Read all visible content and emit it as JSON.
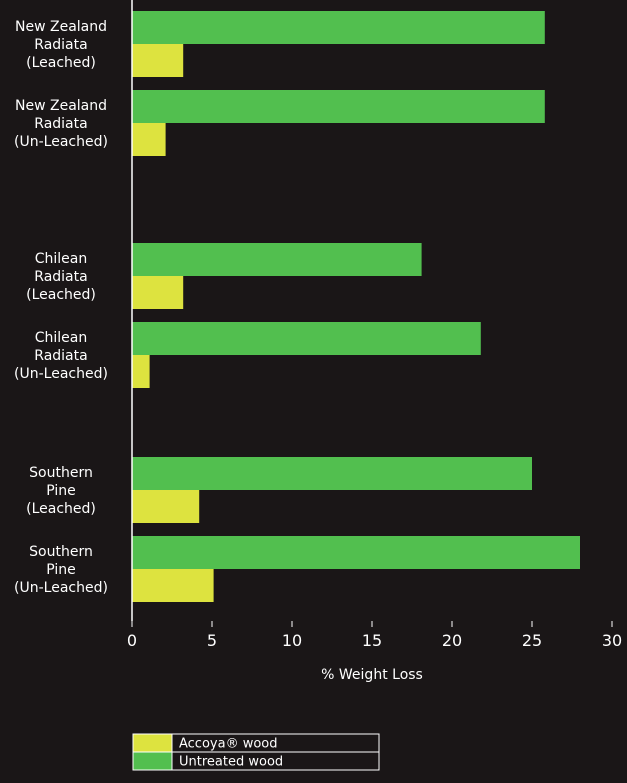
{
  "chart_data": {
    "type": "bar",
    "orientation": "horizontal",
    "categories": [
      [
        "New Zealand",
        "Radiata",
        "(Leached)"
      ],
      [
        "New Zealand",
        "Radiata",
        "(Un-Leached)"
      ],
      [
        "Chilean",
        "Radiata",
        "(Leached)"
      ],
      [
        "Chilean",
        "Radiata",
        "(Un-Leached)"
      ],
      [
        "Southern",
        "Pine",
        "(Leached)"
      ],
      [
        "Southern",
        "Pine",
        "(Un-Leached)"
      ]
    ],
    "series": [
      {
        "name": "Untreated wood",
        "color": "#52bf4f",
        "values": [
          25.8,
          25.8,
          18.1,
          21.8,
          25.0,
          28.0
        ]
      },
      {
        "name": "Accoya® wood",
        "color": "#dde33f",
        "values": [
          3.2,
          2.1,
          3.2,
          1.1,
          4.2,
          5.1
        ]
      }
    ],
    "xlabel": "% Weight Loss",
    "xlim": [
      0,
      30
    ],
    "xticks": [
      0,
      5,
      10,
      15,
      20,
      25,
      30
    ],
    "legend_position": "bottom",
    "legend_order": [
      "Accoya® wood",
      "Untreated wood"
    ],
    "background": "#1a1617",
    "grid": false
  }
}
